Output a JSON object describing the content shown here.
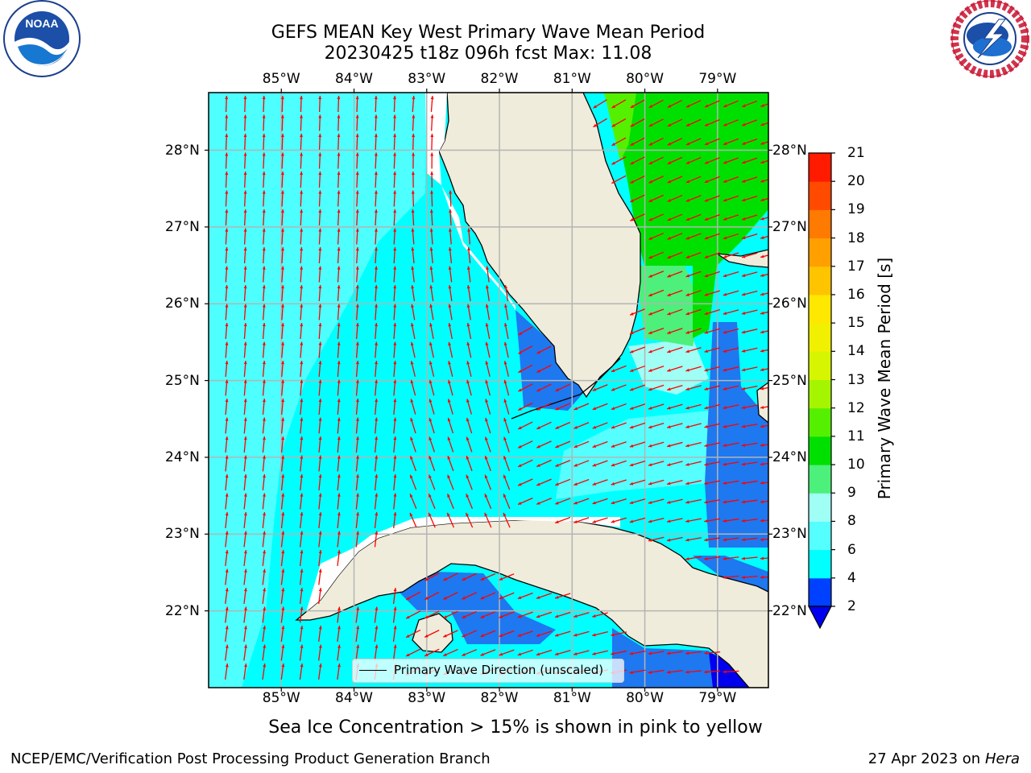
{
  "header": {
    "title_line1": "GEFS MEAN Key West Primary Wave Mean Period",
    "title_line2": "20230425 t18z 096h fcst   Max: 11.08"
  },
  "logos": {
    "left": {
      "name": "noaa-logo",
      "text": "NOAA",
      "ring_text": "NATIONAL OCEANIC AND ATMOSPHERIC ADMINISTRATION · U.S. DEPARTMENT OF COMMERCE"
    },
    "right": {
      "name": "nws-logo",
      "ring_text": "NATIONAL WEATHER SERVICE"
    }
  },
  "map": {
    "lon_labels": [
      "85°W",
      "84°W",
      "83°W",
      "82°W",
      "81°W",
      "80°W",
      "79°W"
    ],
    "lat_labels": [
      "28°N",
      "27°N",
      "26°N",
      "25°N",
      "24°N",
      "23°N",
      "22°N"
    ],
    "lon_values": [
      -85,
      -84,
      -83,
      -82,
      -81,
      -80,
      -79
    ],
    "lat_values": [
      28,
      27,
      26,
      25,
      24,
      23,
      22
    ],
    "extent": {
      "lon_min": -86.0,
      "lon_max": -78.3,
      "lat_min": 21.0,
      "lat_max": 28.75
    },
    "colors": {
      "ocean": "#00ffff",
      "land": "#efecdb",
      "grid": "#b4b4b4",
      "arrow": "#ff0000"
    },
    "legend_label": "Primary Wave Direction (unscaled)"
  },
  "colorbar": {
    "title": "Primary Wave Mean Period [s]",
    "ticks": [
      "2",
      "4",
      "6",
      "8",
      "9",
      "10",
      "11",
      "12",
      "13",
      "14",
      "15",
      "16",
      "17",
      "18",
      "19",
      "20",
      "21"
    ],
    "colors": [
      "#0040ff",
      "#00ffff",
      "#55ffff",
      "#9ffff5",
      "#4cf07a",
      "#00e000",
      "#55f000",
      "#a6f500",
      "#d6f500",
      "#f0f000",
      "#ffe800",
      "#ffc400",
      "#ffa000",
      "#ff7a00",
      "#ff4a00",
      "#ff1a00"
    ],
    "under_color": "#0000ee"
  },
  "footer": {
    "note": "Sea Ice Concentration > 15% is shown in pink to yellow",
    "credit": "NCEP/EMC/Verification Post Processing Product Generation Branch",
    "date": "27 Apr 2023 on",
    "host": "Hera"
  }
}
